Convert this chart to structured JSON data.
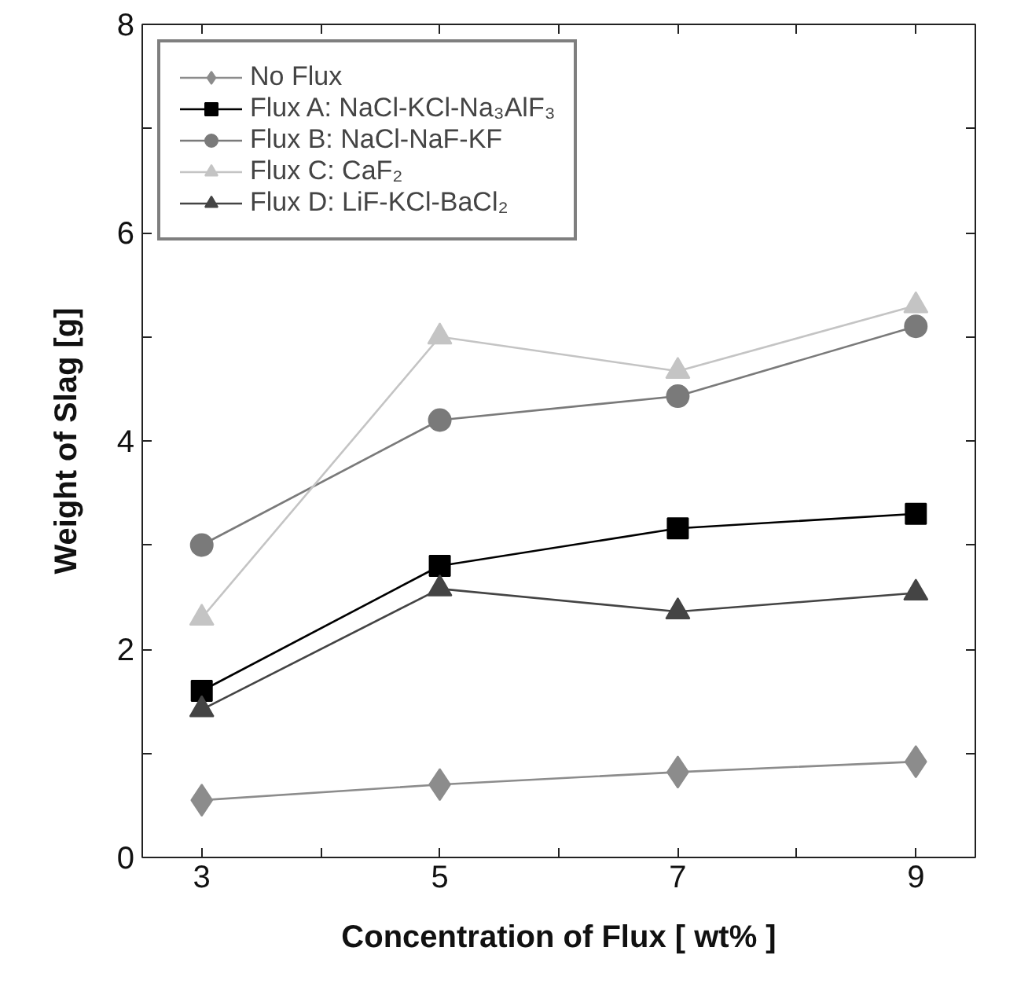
{
  "chart_data": {
    "type": "line",
    "xlabel": "Concentration of Flux [ wt% ]",
    "ylabel": "Weight of Slag [g]",
    "x": [
      3,
      5,
      7,
      9
    ],
    "xlim": [
      2.5,
      9.5
    ],
    "xticks": [
      3,
      {
        "value": 4,
        "label": null
      },
      5,
      {
        "value": 6,
        "label": null
      },
      7,
      {
        "value": 8,
        "label": null
      },
      9
    ],
    "ylim": [
      0,
      8
    ],
    "yticks": [
      0,
      {
        "value": 1,
        "label": null
      },
      2,
      {
        "value": 3,
        "label": null
      },
      4,
      {
        "value": 5,
        "label": null
      },
      6,
      {
        "value": 7,
        "label": null
      },
      8
    ],
    "grid": false,
    "legend": "top left",
    "line_style": "solid",
    "series": [
      {
        "name": "No Flux",
        "color": "#8c8c8c",
        "marker": "diamond",
        "values": [
          0.55,
          0.7,
          0.82,
          0.92
        ]
      },
      {
        "name": "Flux A: NaCl-KCl-Na₃AlF₃",
        "color": "#000000",
        "marker": "square",
        "values": [
          1.6,
          2.8,
          3.16,
          3.3
        ]
      },
      {
        "name": "Flux B: NaCl-NaF-KF",
        "color": "#7a7a7a",
        "marker": "circle",
        "values": [
          3.0,
          4.2,
          4.43,
          5.1
        ]
      },
      {
        "name": "Flux C: CaF₂",
        "color": "#c4c4c4",
        "marker": "triangle",
        "values": [
          2.3,
          5.0,
          4.67,
          5.3
        ]
      },
      {
        "name": "Flux D: LiF-KCl-BaCl₂",
        "color": "#444444",
        "marker": "triangle",
        "values": [
          1.42,
          2.58,
          2.36,
          2.54
        ]
      }
    ]
  }
}
